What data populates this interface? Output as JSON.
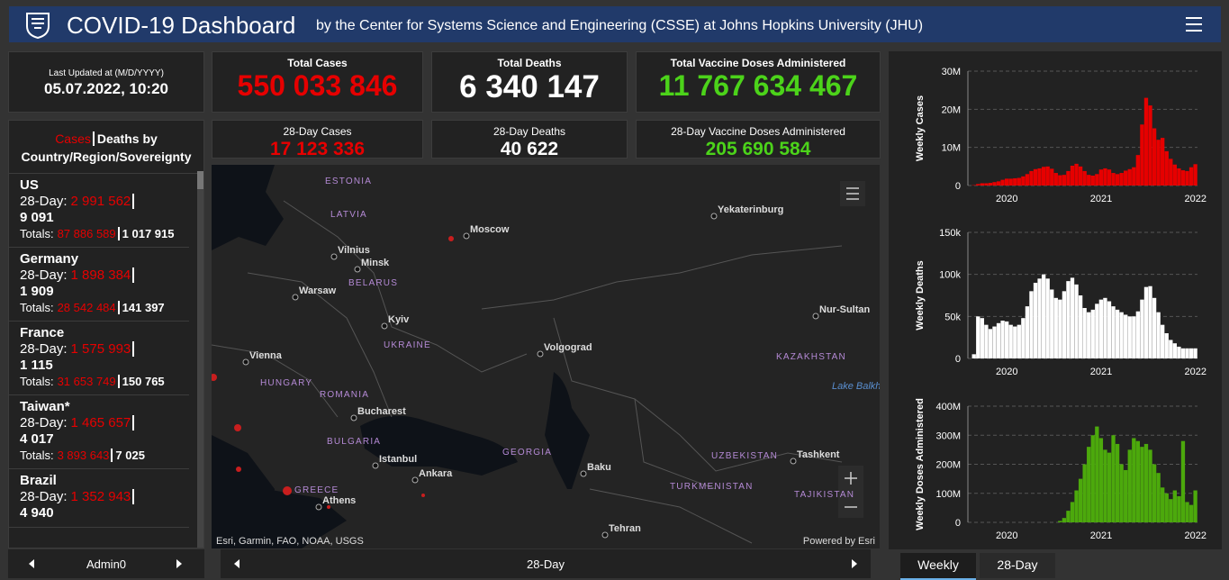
{
  "header": {
    "title": "COVID-19 Dashboard",
    "subtitle": "by the Center for Systems Science and Engineering (CSSE) at Johns Hopkins University (JHU)"
  },
  "stats": {
    "last_updated_label": "Last Updated at (M/D/YYYY)",
    "last_updated": "05.07.2022, 10:20",
    "total_cases": {
      "label": "Total Cases",
      "value": "550 033 846"
    },
    "total_deaths": {
      "label": "Total Deaths",
      "value": "6 340 147"
    },
    "total_vaccine": {
      "label": "Total Vaccine Doses Administered",
      "value": "11 767 634 467"
    },
    "cases_28d": {
      "label": "28-Day Cases",
      "value": "17 123 336"
    },
    "deaths_28d": {
      "label": "28-Day Deaths",
      "value": "40 622"
    },
    "vaccine_28d": {
      "label": "28-Day Vaccine Doses Administered",
      "value": "205 690 584"
    }
  },
  "list": {
    "head_cases": "Cases",
    "head_rest": "Deaths by Country/Region/Sovereignty",
    "label_28day": "28-Day:",
    "label_totals": "Totals:",
    "entries": [
      {
        "name": "US",
        "cases_28d": "2 991 562",
        "deaths_28d": "9 091",
        "cases_total": "87 886 589",
        "deaths_total": "1 017 915"
      },
      {
        "name": "Germany",
        "cases_28d": "1 898 384",
        "deaths_28d": "1 909",
        "cases_total": "28 542 484",
        "deaths_total": "141 397"
      },
      {
        "name": "France",
        "cases_28d": "1 575 993",
        "deaths_28d": "1 115",
        "cases_total": "31 653 749",
        "deaths_total": "150 765"
      },
      {
        "name": "Taiwan*",
        "cases_28d": "1 465 657",
        "deaths_28d": "4 017",
        "cases_total": "3 893 643",
        "deaths_total": "7 025"
      },
      {
        "name": "Brazil",
        "cases_28d": "1 352 943",
        "deaths_28d": "4 940"
      }
    ]
  },
  "map": {
    "labels": [
      "ESTONIA",
      "LATVIA",
      "Vilnius",
      "Minsk",
      "BELARUS",
      "Warsaw",
      "Moscow",
      "Yekaterinburg",
      "Kyiv",
      "UKRAINE",
      "Volgograd",
      "Vienna",
      "HUNGARY",
      "ROMANIA",
      "KAZAKHSTAN",
      "Nur-Sultan",
      "Bucharest",
      "BULGARIA",
      "Istanbul",
      "Ankara",
      "GEORGIA",
      "Baku",
      "UZBEKISTAN",
      "Tashkent",
      "TURKMENISTAN",
      "TAJIKISTAN",
      "GREECE",
      "Athens",
      "Tehran",
      "Lake Balkhash"
    ],
    "attribution": "Esri, Garmin, FAO, NOAA, USGS",
    "powered": "Powered by Esri"
  },
  "footer": {
    "left": "Admin0",
    "center": "28-Day",
    "tabs": [
      "Weekly",
      "28-Day"
    ]
  },
  "chart_data": [
    {
      "type": "bar",
      "y_label": "Weekly Cases",
      "color": "#e60000",
      "grid": true,
      "categories": [
        null,
        null,
        null,
        null,
        null,
        null,
        null,
        null,
        null,
        "2020",
        null,
        null,
        null,
        null,
        null,
        null,
        null,
        null,
        null,
        null,
        null,
        null,
        null,
        null,
        null,
        null,
        null,
        null,
        null,
        null,
        null,
        null,
        "2021",
        null,
        null,
        null,
        null,
        null,
        null,
        null,
        null,
        null,
        null,
        null,
        null,
        null,
        null,
        null,
        null,
        null,
        null,
        null,
        null,
        null,
        null,
        "2022"
      ],
      "values": [
        0,
        0.1,
        0.4,
        0.6,
        0.6,
        0.7,
        0.9,
        1.1,
        1.5,
        1.8,
        1.8,
        1.9,
        2.0,
        2.4,
        3.0,
        3.8,
        4.3,
        4.5,
        4.9,
        5.0,
        4.4,
        3.3,
        2.7,
        2.8,
        3.8,
        5.2,
        5.7,
        5.0,
        3.8,
        2.8,
        2.6,
        3.0,
        4.2,
        4.5,
        4.2,
        3.3,
        3.0,
        3.3,
        3.9,
        4.3,
        4.8,
        8.0,
        16.0,
        23.0,
        21.0,
        15.0,
        12.0,
        12.5,
        9.0,
        7.0,
        5.5,
        4.5,
        4.0,
        3.8,
        4.8,
        5.6
      ],
      "ylim": [
        0,
        30
      ],
      "yticks": [
        0,
        {
          "value": 10,
          "label": "10M"
        },
        {
          "value": 20,
          "label": "20M"
        },
        {
          "value": 30,
          "label": "30M"
        }
      ]
    },
    {
      "type": "bar",
      "y_label": "Weekly Deaths",
      "color": "#ffffff",
      "grid": true,
      "categories": [
        null,
        null,
        null,
        null,
        null,
        null,
        null,
        null,
        null,
        "2020",
        null,
        null,
        null,
        null,
        null,
        null,
        null,
        null,
        null,
        null,
        null,
        null,
        null,
        null,
        null,
        null,
        null,
        null,
        null,
        null,
        null,
        null,
        "2021",
        null,
        null,
        null,
        null,
        null,
        null,
        null,
        null,
        null,
        null,
        null,
        null,
        null,
        null,
        null,
        null,
        null,
        null,
        null,
        null,
        null,
        null,
        "2022"
      ],
      "values": [
        0,
        5,
        50,
        48,
        40,
        35,
        38,
        42,
        45,
        44,
        40,
        38,
        40,
        48,
        62,
        80,
        90,
        95,
        100,
        95,
        82,
        72,
        70,
        80,
        92,
        96,
        88,
        75,
        60,
        55,
        58,
        65,
        70,
        72,
        68,
        62,
        58,
        55,
        52,
        50,
        50,
        56,
        70,
        85,
        86,
        72,
        55,
        40,
        30,
        22,
        18,
        14,
        12,
        12,
        12,
        12
      ],
      "ylim": [
        0,
        150
      ],
      "yticks": [
        0,
        {
          "value": 50,
          "label": "50k"
        },
        {
          "value": 100,
          "label": "100k"
        },
        {
          "value": 150,
          "label": "150k"
        }
      ]
    },
    {
      "type": "bar",
      "y_label": "Weekly Doses Administered",
      "color": "#4ca90c",
      "grid": true,
      "categories": [
        null,
        null,
        null,
        null,
        null,
        null,
        null,
        null,
        null,
        "2020",
        null,
        null,
        null,
        null,
        null,
        null,
        null,
        null,
        null,
        null,
        null,
        null,
        null,
        null,
        null,
        null,
        null,
        null,
        null,
        null,
        null,
        null,
        "2021",
        null,
        null,
        null,
        null,
        null,
        null,
        null,
        null,
        null,
        null,
        null,
        null,
        null,
        null,
        null,
        null,
        null,
        null,
        null,
        null,
        null,
        null,
        "2022"
      ],
      "values": [
        0,
        0,
        0,
        0,
        0,
        0,
        0,
        0,
        0,
        0,
        0,
        0,
        0,
        0,
        0,
        0,
        0,
        0,
        0,
        0,
        0,
        0,
        5,
        15,
        40,
        70,
        110,
        150,
        200,
        260,
        300,
        330,
        290,
        250,
        240,
        300,
        270,
        200,
        180,
        250,
        290,
        280,
        260,
        270,
        250,
        200,
        170,
        120,
        100,
        80,
        110,
        90,
        280,
        70,
        60,
        110
      ],
      "ylim": [
        0,
        400
      ],
      "yticks": [
        0,
        {
          "value": 100,
          "label": "100M"
        },
        {
          "value": 200,
          "label": "200M"
        },
        {
          "value": 300,
          "label": "300M"
        },
        {
          "value": 400,
          "label": "400M"
        }
      ]
    }
  ]
}
